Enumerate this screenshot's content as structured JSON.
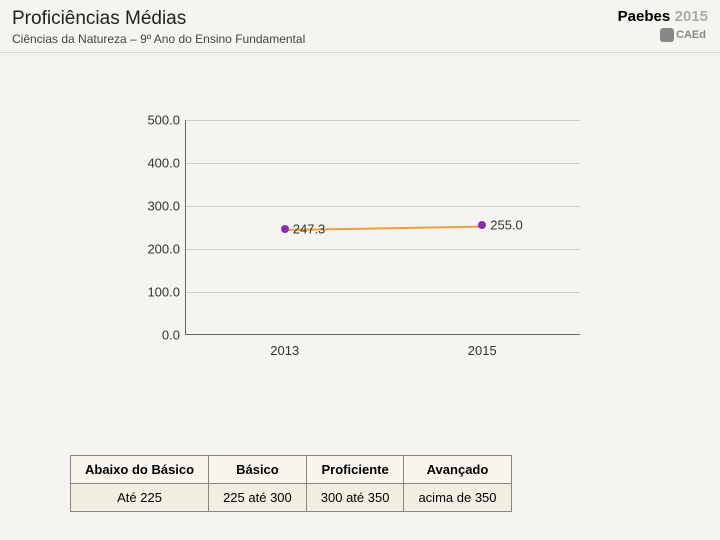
{
  "header": {
    "title": "Proficiências Médias",
    "brand": "Paebes",
    "year": "2015",
    "subtitle": "Ciências da Natureza – 9º Ano do Ensino Fundamental",
    "logo_text": "CAEd"
  },
  "chart": {
    "type": "line",
    "ylim": [
      0,
      500
    ],
    "ytick_step": 100,
    "yticks": [
      "0.0",
      "100.0",
      "200.0",
      "300.0",
      "400.0",
      "500.0"
    ],
    "categories": [
      "2013",
      "2015"
    ],
    "series": {
      "values": [
        247.3,
        255.0
      ],
      "labels": [
        "247.3",
        "255.0"
      ],
      "point_color": "#8a2bb0",
      "line_color": "#e8a33d"
    },
    "axis_color": "#666666",
    "grid_color": "#cccccc",
    "background_color": "#f5f4f0",
    "label_fontsize": 13
  },
  "legend": {
    "headers": [
      "Abaixo do Básico",
      "Básico",
      "Proficiente",
      "Avançado"
    ],
    "ranges": [
      "Até 225",
      "225 até 300",
      "300 até 350",
      "acima de 350"
    ]
  }
}
